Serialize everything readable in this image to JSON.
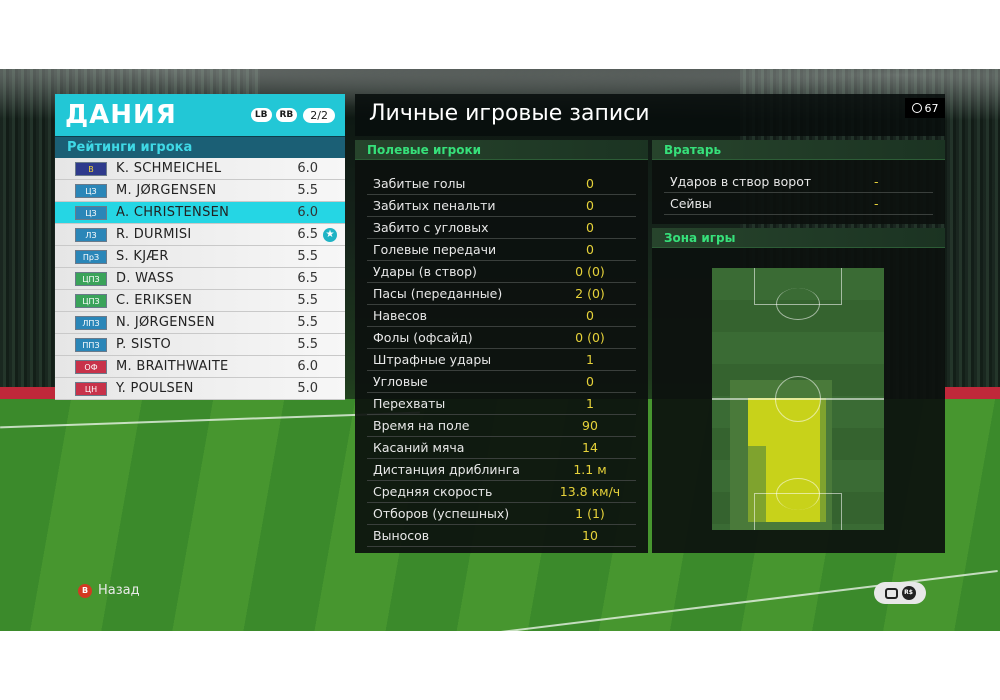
{
  "team": {
    "name": "ДАНИЯ",
    "lb_label": "LB",
    "rb_label": "RB",
    "page": "2/2",
    "ratings_title": "Рейтинги игрока",
    "players": [
      {
        "pos": "В",
        "pos_color": "#2e3a8c",
        "pos_text_color": "#f2d23a",
        "name": "K. SCHMEICHEL",
        "rating": "6.0",
        "selected": false,
        "star": false
      },
      {
        "pos": "ЦЗ",
        "pos_color": "#2a86b8",
        "pos_text_color": "#ffffff",
        "name": "M. JØRGENSEN",
        "rating": "5.5",
        "selected": false,
        "star": false
      },
      {
        "pos": "ЦЗ",
        "pos_color": "#2a86b8",
        "pos_text_color": "#ffffff",
        "name": "A. CHRISTENSEN",
        "rating": "6.0",
        "selected": true,
        "star": false
      },
      {
        "pos": "ЛЗ",
        "pos_color": "#2a86b8",
        "pos_text_color": "#ffffff",
        "name": "R. DURMISI",
        "rating": "6.5",
        "selected": false,
        "star": true
      },
      {
        "pos": "ПрЗ",
        "pos_color": "#2a86b8",
        "pos_text_color": "#ffffff",
        "name": "S. KJÆR",
        "rating": "5.5",
        "selected": false,
        "star": false
      },
      {
        "pos": "ЦПЗ",
        "pos_color": "#3aa35a",
        "pos_text_color": "#ffffff",
        "name": "D. WASS",
        "rating": "6.5",
        "selected": false,
        "star": false
      },
      {
        "pos": "ЦПЗ",
        "pos_color": "#3aa35a",
        "pos_text_color": "#ffffff",
        "name": "C. ERIKSEN",
        "rating": "5.5",
        "selected": false,
        "star": false
      },
      {
        "pos": "ЛПЗ",
        "pos_color": "#2a86b8",
        "pos_text_color": "#ffffff",
        "name": "N. JØRGENSEN",
        "rating": "5.5",
        "selected": false,
        "star": false
      },
      {
        "pos": "ППЗ",
        "pos_color": "#2a86b8",
        "pos_text_color": "#ffffff",
        "name": "P. SISTO",
        "rating": "5.5",
        "selected": false,
        "star": false
      },
      {
        "pos": "ОФ",
        "pos_color": "#c8324a",
        "pos_text_color": "#ffffff",
        "name": "M. BRAITHWAITE",
        "rating": "6.0",
        "selected": false,
        "star": false
      },
      {
        "pos": "ЦН",
        "pos_color": "#c8324a",
        "pos_text_color": "#ffffff",
        "name": "Y. POULSEN",
        "rating": "5.0",
        "selected": false,
        "star": false
      }
    ]
  },
  "records": {
    "title": "Личные игровые записи",
    "timer": "67"
  },
  "field_players": {
    "header": "Полевые игроки",
    "stats": [
      {
        "label": "Забитые голы",
        "value": "0"
      },
      {
        "label": "Забитых пенальти",
        "value": "0"
      },
      {
        "label": "Забито с угловых",
        "value": "0"
      },
      {
        "label": "Голевые передачи",
        "value": "0"
      },
      {
        "label": "Удары (в створ)",
        "value": "0 (0)"
      },
      {
        "label": "Пасы (переданные)",
        "value": "2 (0)"
      },
      {
        "label": "Навесов",
        "value": "0"
      },
      {
        "label": "Фолы (офсайд)",
        "value": "0 (0)"
      },
      {
        "label": "Штрафные удары",
        "value": "1"
      },
      {
        "label": "Угловые",
        "value": "0"
      },
      {
        "label": "Перехваты",
        "value": "1"
      },
      {
        "label": "Время на поле",
        "value": "90"
      },
      {
        "label": "Касаний мяча",
        "value": "14"
      },
      {
        "label": "Дистанция дриблинга",
        "value": "1.1 м"
      },
      {
        "label": "Средняя скорость",
        "value": "13.8 км/ч"
      },
      {
        "label": "Отборов (успешных)",
        "value": "1 (1)"
      },
      {
        "label": "Выносов",
        "value": "10"
      }
    ]
  },
  "goalkeeper": {
    "header": "Вратарь",
    "stats": [
      {
        "label": "Ударов в створ ворот",
        "value": "-"
      },
      {
        "label": "Сейвы",
        "value": "-"
      }
    ]
  },
  "zone": {
    "header": "Зона игры"
  },
  "footer": {
    "back_button_glyph": "B",
    "back_label": "Назад",
    "rs_label": "R$"
  },
  "colors": {
    "accent": "#22c7d6",
    "section_green": "#36e07a",
    "value_yellow": "#e6d23a",
    "heat_yellow": "#c8d21a"
  }
}
